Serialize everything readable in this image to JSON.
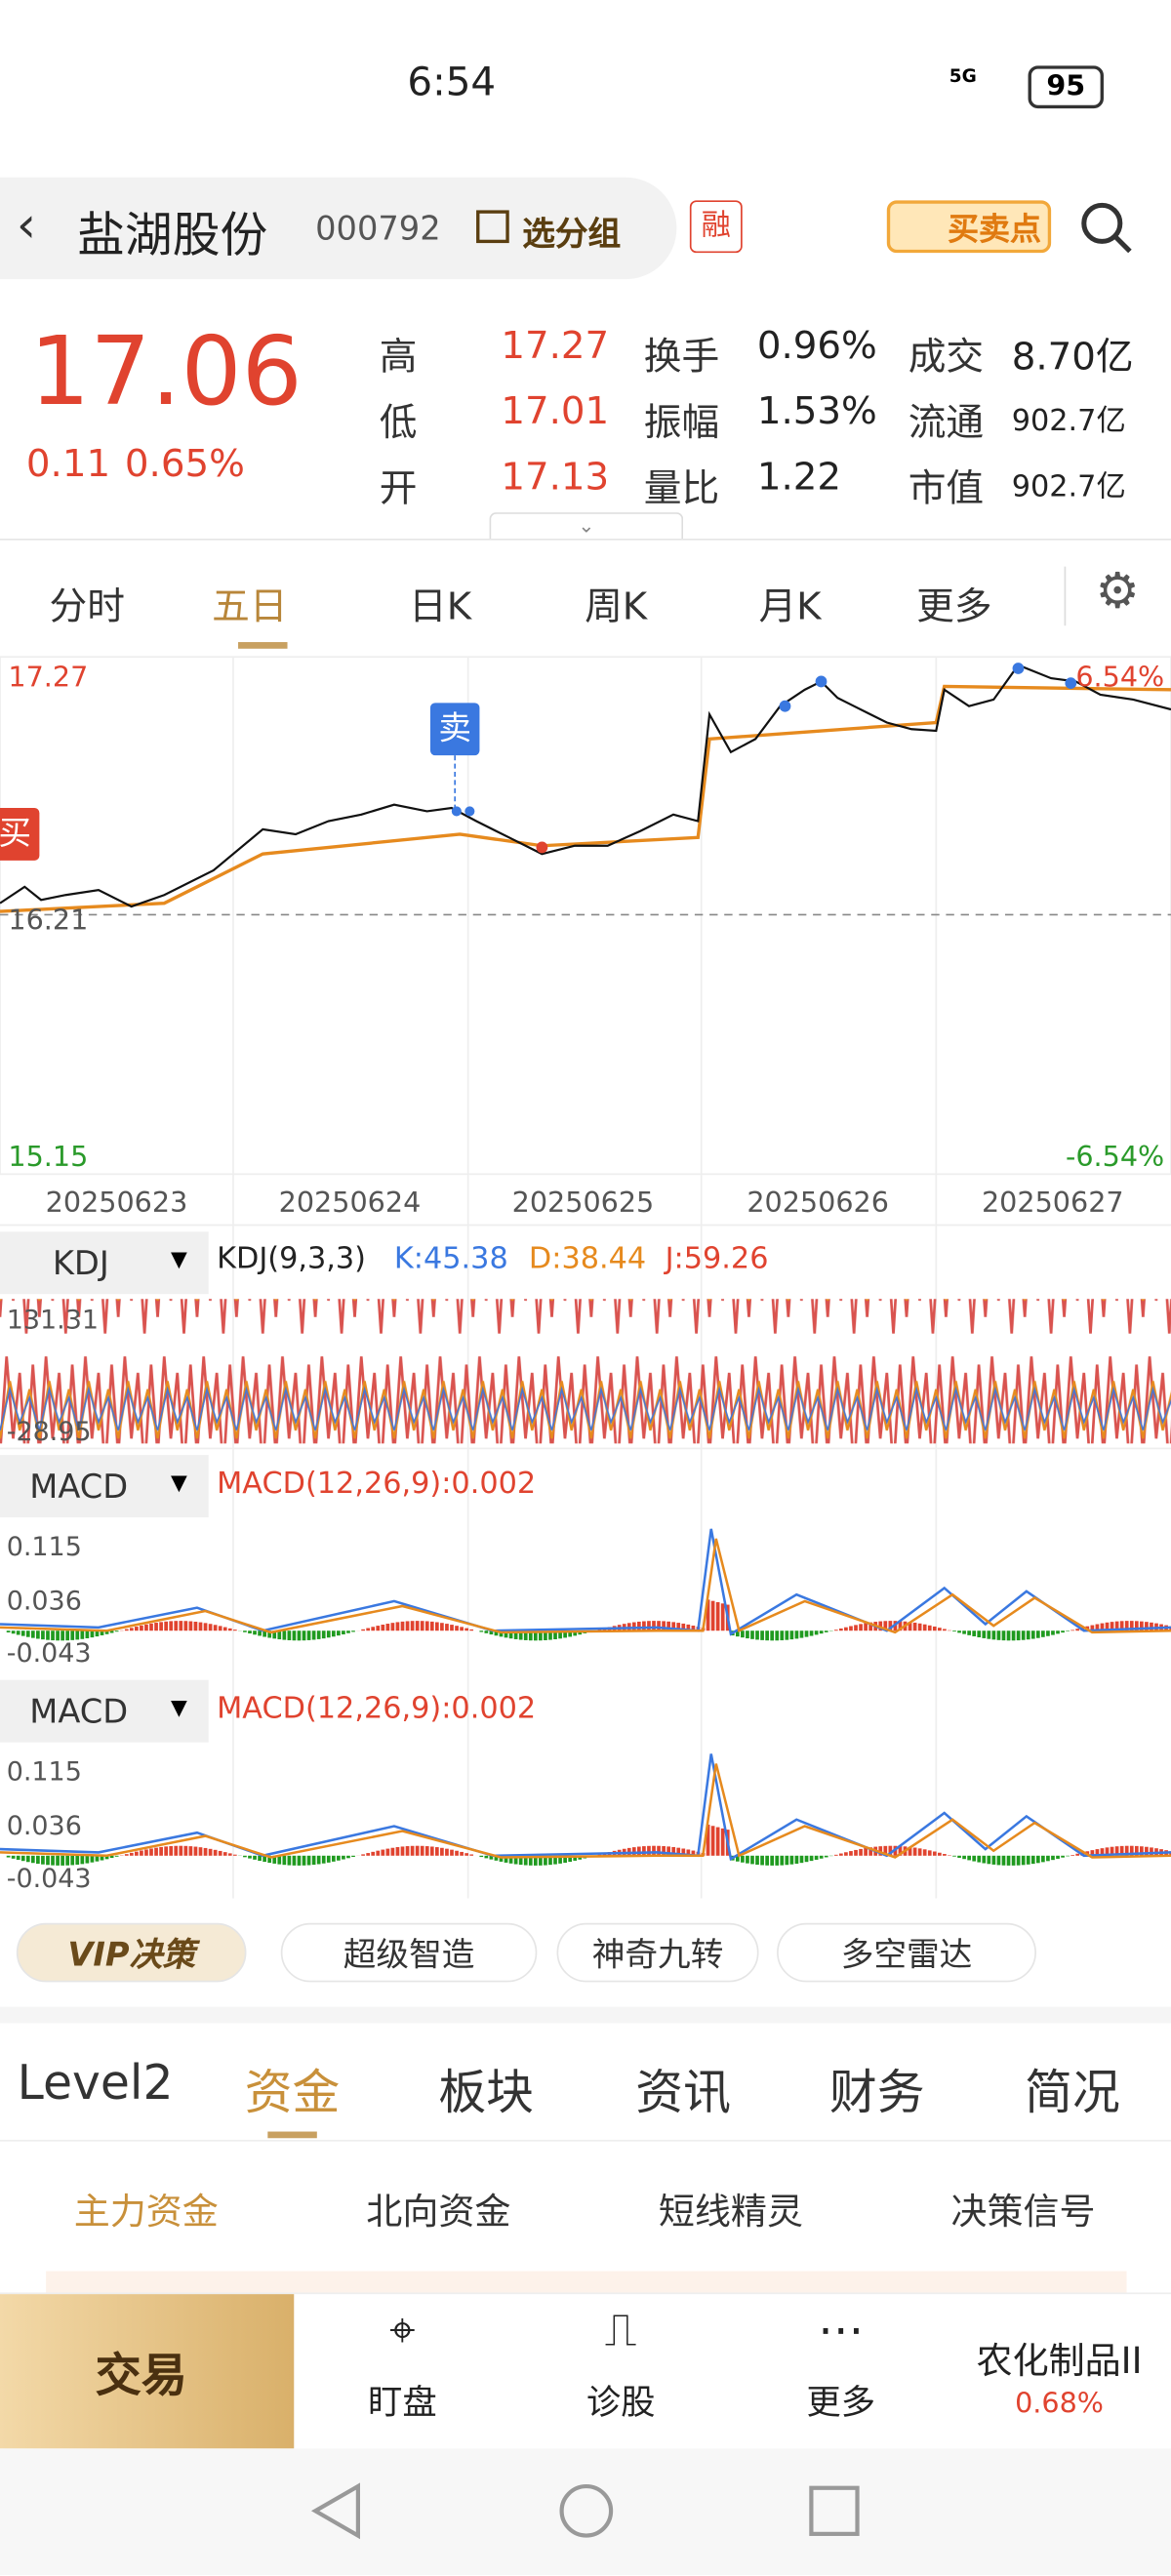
{
  "status": {
    "time": "6:54",
    "network": "5G",
    "battery": "95"
  },
  "header": {
    "name": "盐湖股份",
    "code": "000792",
    "group": "选分组",
    "margin": "融",
    "signal": "买卖点"
  },
  "quote": {
    "price": "17.06",
    "change": "0.11",
    "percent": "0.65%",
    "stats": [
      [
        [
          "高",
          "17.27"
        ],
        [
          "换手",
          "0.96%"
        ],
        [
          "成交",
          "8.70亿"
        ]
      ],
      [
        [
          "低",
          "17.01"
        ],
        [
          "振幅",
          "1.53%"
        ],
        [
          "流通",
          "902.7亿"
        ]
      ],
      [
        [
          "开",
          "17.13"
        ],
        [
          "量比",
          "1.22"
        ],
        [
          "市值",
          "902.7亿"
        ]
      ]
    ]
  },
  "period_tabs": [
    "分时",
    "五日",
    "日K",
    "周K",
    "月K",
    "更多"
  ],
  "chart": {
    "high": "17.27",
    "low": "15.15",
    "pct_high": "6.54%",
    "pct_low": "-6.54%",
    "prev_close": "16.21",
    "buy": "买",
    "sell": "卖",
    "dates": [
      "20250623",
      "20250624",
      "20250625",
      "20250626",
      "20250627"
    ]
  },
  "kdj": {
    "selector": "KDJ",
    "params": "KDJ(9,3,3)",
    "k": "K:45.38",
    "d": "D:38.44",
    "j": "J:59.26",
    "ticks": [
      "131.31",
      "-28.95"
    ]
  },
  "macd": [
    {
      "selector": "MACD",
      "params": "MACD(12,26,9):0.002",
      "ticks": [
        "0.115",
        "0.036",
        "-0.043"
      ]
    },
    {
      "selector": "MACD",
      "params": "MACD(12,26,9):0.002",
      "ticks": [
        "0.115",
        "0.036",
        "-0.043"
      ]
    }
  ],
  "tools": [
    "VIP决策",
    "超级智造",
    "神奇九转",
    "多空雷达"
  ],
  "section_tabs": [
    "Level2",
    "资金",
    "板块",
    "资讯",
    "财务",
    "简况"
  ],
  "sub_tabs": [
    "主力资金",
    "北向资金",
    "短线精灵",
    "决策信号"
  ],
  "bottom_bar": {
    "trade": "交易",
    "items": [
      "盯盘",
      "诊股",
      "更多"
    ],
    "sector": "农化制品II",
    "sector_change": "0.68%"
  }
}
